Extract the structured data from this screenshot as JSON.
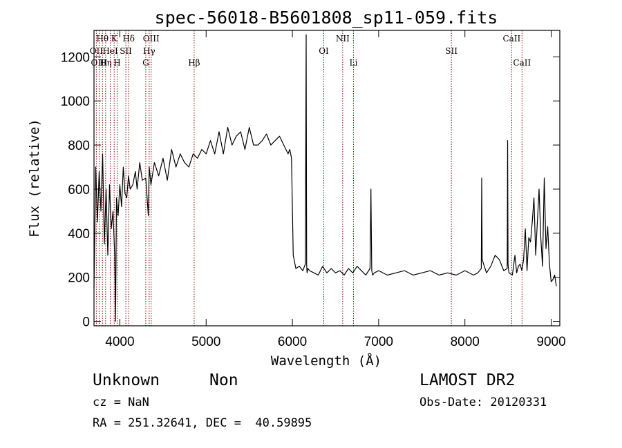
{
  "chart_data": {
    "type": "line",
    "title": "spec-56018-B5601808_sp11-059.fits",
    "xlabel": "Wavelength (Å)",
    "ylabel": "Flux (relative)",
    "xlim": [
      3700,
      9100
    ],
    "ylim": [
      -20,
      1320
    ],
    "xticks": [
      4000,
      5000,
      6000,
      7000,
      8000,
      9000
    ],
    "yticks": [
      0,
      200,
      400,
      600,
      800,
      1000,
      1200
    ],
    "grid": false,
    "series": [
      {
        "x": [
          3700,
          3720,
          3740,
          3760,
          3780,
          3800,
          3820,
          3840,
          3860,
          3880,
          3900,
          3920,
          3940,
          3950,
          3960,
          3980,
          4000,
          4020,
          4040,
          4060,
          4080,
          4100,
          4120,
          4150,
          4180,
          4200,
          4230,
          4260,
          4300,
          4330,
          4340,
          4360,
          4400,
          4450,
          4500,
          4550,
          4600,
          4650,
          4700,
          4750,
          4800,
          4850,
          4900,
          4950,
          5000,
          5050,
          5100,
          5150,
          5200,
          5250,
          5300,
          5350,
          5400,
          5450,
          5500,
          5550,
          5600,
          5650,
          5700,
          5750,
          5800,
          5850,
          5900,
          5950,
          5970,
          5990,
          6010,
          6040,
          6080,
          6120,
          6150,
          6160,
          6165,
          6170,
          6180,
          6200,
          6250,
          6300,
          6350,
          6400,
          6450,
          6500,
          6550,
          6600,
          6650,
          6700,
          6750,
          6800,
          6850,
          6900,
          6910,
          6920,
          6930,
          6950,
          7000,
          7100,
          7200,
          7300,
          7400,
          7500,
          7600,
          7700,
          7800,
          7900,
          8000,
          8100,
          8150,
          8190,
          8195,
          8200,
          8250,
          8300,
          8350,
          8400,
          8450,
          8490,
          8495,
          8500,
          8510,
          8550,
          8580,
          8600,
          8620,
          8640,
          8660,
          8680,
          8700,
          8720,
          8740,
          8760,
          8780,
          8800,
          8820,
          8840,
          8860,
          8880,
          8900,
          8920,
          8940,
          8960,
          8980,
          9000,
          9020,
          9040,
          9060
        ],
        "y": [
          150,
          700,
          450,
          680,
          500,
          760,
          350,
          600,
          300,
          620,
          420,
          500,
          300,
          0,
          560,
          480,
          620,
          520,
          700,
          580,
          560,
          660,
          600,
          620,
          680,
          600,
          720,
          640,
          650,
          480,
          700,
          620,
          720,
          660,
          740,
          640,
          780,
          700,
          760,
          720,
          700,
          760,
          740,
          780,
          760,
          820,
          760,
          860,
          760,
          880,
          800,
          840,
          860,
          780,
          880,
          800,
          800,
          820,
          850,
          800,
          820,
          840,
          800,
          760,
          780,
          740,
          300,
          240,
          250,
          230,
          260,
          1300,
          260,
          220,
          240,
          230,
          220,
          210,
          250,
          220,
          240,
          220,
          230,
          210,
          240,
          220,
          250,
          230,
          210,
          240,
          600,
          230,
          210,
          220,
          230,
          210,
          220,
          230,
          210,
          220,
          230,
          210,
          220,
          210,
          230,
          210,
          220,
          240,
          650,
          280,
          220,
          250,
          300,
          280,
          230,
          240,
          820,
          260,
          220,
          210,
          300,
          220,
          250,
          260,
          230,
          280,
          420,
          230,
          380,
          360,
          450,
          560,
          300,
          450,
          600,
          380,
          250,
          650,
          330,
          430,
          260,
          180,
          190,
          210,
          160
        ]
      }
    ],
    "lines": [
      {
        "label": "Hθ",
        "x": 3798,
        "row": 0
      },
      {
        "label": "K",
        "x": 3934,
        "row": 0
      },
      {
        "label": "Hδ",
        "x": 4102,
        "row": 0
      },
      {
        "label": "OIII",
        "x": 4363,
        "row": 0
      },
      {
        "label": "NII",
        "x": 6583,
        "row": 0
      },
      {
        "label": "CaII",
        "x": 8542,
        "row": 0
      },
      {
        "label": "OII",
        "x": 3727,
        "row": 1
      },
      {
        "label": "HeI",
        "x": 3889,
        "row": 1
      },
      {
        "label": "SII",
        "x": 4069,
        "row": 1
      },
      {
        "label": "Hγ",
        "x": 4340,
        "row": 1
      },
      {
        "label": "OI",
        "x": 6364,
        "row": 1
      },
      {
        "label": "SII",
        "x": 7843,
        "row": 1
      },
      {
        "label": "OIII",
        "x": 3760,
        "row": 2
      },
      {
        "label": "Hη",
        "x": 3835,
        "row": 2
      },
      {
        "label": "H",
        "x": 3968,
        "row": 2
      },
      {
        "label": "G",
        "x": 4300,
        "row": 2
      },
      {
        "label": "Hβ",
        "x": 4861,
        "row": 2
      },
      {
        "label": "Li",
        "x": 6708,
        "row": 2
      },
      {
        "label": "CaII",
        "x": 8662,
        "row": 2
      }
    ]
  },
  "info": {
    "class_label": "Unknown",
    "subclass_label": "Non",
    "survey": "LAMOST DR2",
    "cz": "cz = NaN",
    "obs_date": "Obs-Date: 20120331",
    "coords": "RA = 251.32641, DEC =  40.59895"
  },
  "colors": {
    "spectrum": "#000000",
    "line_markers": "#8b0000"
  }
}
